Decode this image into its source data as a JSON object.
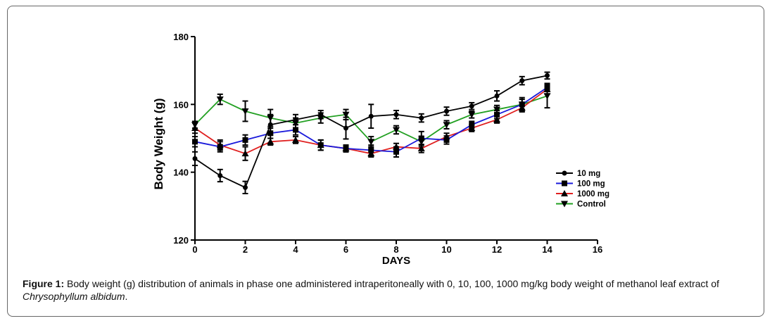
{
  "chart_data": {
    "type": "line",
    "xlabel": "DAYS",
    "ylabel": "Body Weight (g)",
    "xlim": [
      0,
      16
    ],
    "ylim": [
      120,
      180
    ],
    "xticks": [
      0,
      2,
      4,
      6,
      8,
      10,
      12,
      14,
      16
    ],
    "yticks": [
      120,
      140,
      160,
      180
    ],
    "x": [
      0,
      1,
      2,
      3,
      4,
      5,
      6,
      7,
      8,
      9,
      10,
      11,
      12,
      13,
      14
    ],
    "legend_position": "right",
    "series": [
      {
        "name": "10 mg",
        "color": "#000000",
        "marker": "circle",
        "values": [
          144,
          139,
          135.5,
          154,
          155.5,
          157,
          153,
          156.5,
          157,
          156,
          158,
          159.5,
          162.5,
          167,
          168.5
        ],
        "errors": [
          2,
          1.8,
          1.8,
          3,
          1.5,
          1.2,
          3.2,
          3.5,
          1.2,
          1.2,
          1.2,
          1,
          1.5,
          1.2,
          1
        ]
      },
      {
        "name": "100 mg",
        "color": "#1a1adb",
        "marker": "square",
        "values": [
          149,
          147.5,
          149.5,
          151.5,
          152.5,
          148,
          147,
          146.5,
          146,
          150,
          149.5,
          154,
          157,
          160,
          165
        ],
        "errors": [
          1.5,
          1.5,
          1.5,
          1.5,
          1.5,
          1.5,
          1,
          1.5,
          1.5,
          2,
          1.2,
          1,
          1.2,
          2,
          1.2
        ]
      },
      {
        "name": "1000 mg",
        "color": "#e02020",
        "marker": "triangle-up",
        "values": [
          153,
          148,
          145.5,
          149,
          149.5,
          148,
          147,
          145.5,
          147.5,
          147,
          150.5,
          153,
          155.5,
          159,
          164.5
        ],
        "errors": [
          1.5,
          1.5,
          2,
          1,
          1,
          1.5,
          1,
          1,
          1,
          1.2,
          1,
          1,
          1,
          1.2,
          1.5
        ]
      },
      {
        "name": "Control",
        "color": "#22a022",
        "marker": "triangle-down",
        "values": [
          154,
          161.5,
          158,
          156,
          154.5,
          156,
          157,
          149,
          152.5,
          149,
          154,
          157,
          158.5,
          160,
          162.5
        ],
        "errors": [
          1,
          1.5,
          3,
          2.5,
          1.5,
          1.5,
          1.5,
          1.5,
          1.2,
          1.5,
          1.2,
          1,
          1.2,
          1.5,
          3.5
        ]
      }
    ]
  },
  "caption": {
    "label": "Figure 1:",
    "text": " Body weight (g) distribution of animals in phase one administered intraperitoneally with 0, 10, 100, 1000 mg/kg body weight of methanol leaf extract of ",
    "species": "Chrysophyllum albidum",
    "end": "."
  }
}
